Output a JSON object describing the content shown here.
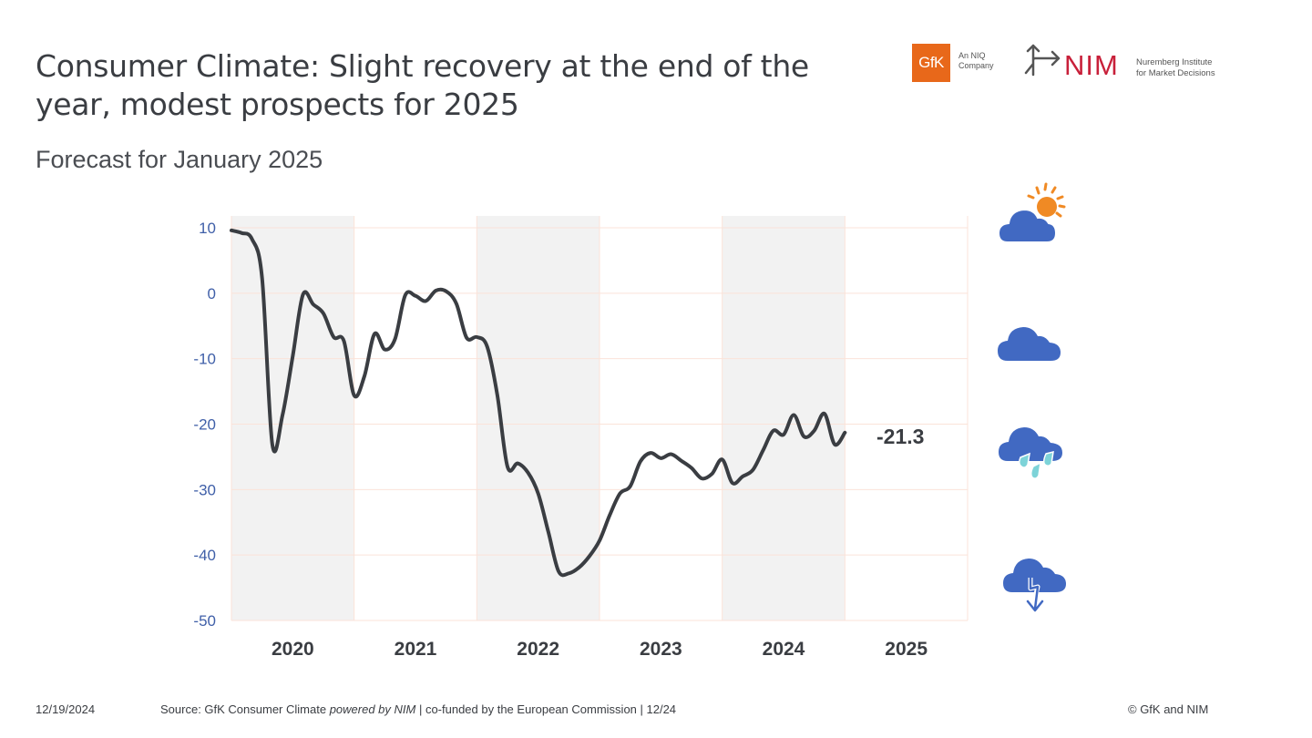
{
  "header": {
    "title": "Consumer Climate: Slight recovery at the end of the year, modest prospects for 2025",
    "subtitle": "Forecast for January 2025"
  },
  "logos": {
    "gfk": {
      "mark": "GfK",
      "tagline_line1": "An NIQ",
      "tagline_line2": "Company",
      "color": "#e8681a"
    },
    "nim": {
      "mark": "NIM",
      "tagline_line1": "Nuremberg Institute",
      "tagline_line2": "for Market Decisions",
      "color": "#c8203a"
    }
  },
  "weather_icons": [
    {
      "name": "sun-behind-cloud-icon",
      "meaning": "good"
    },
    {
      "name": "cloud-icon",
      "meaning": "neutral"
    },
    {
      "name": "rain-cloud-icon",
      "meaning": "poor"
    },
    {
      "name": "storm-cloud-icon",
      "meaning": "bad"
    }
  ],
  "colors": {
    "line": "#3a3d42",
    "axis_labels": "#3f5fa8",
    "band_shading": "#f2f2f2",
    "gridlines": "#fbe3d9",
    "cloud": "#4169c2",
    "sun": "#f08a24",
    "rain": "#7dd3d8"
  },
  "chart_data": {
    "type": "line",
    "title": "",
    "xlabel": "",
    "ylabel": "",
    "ylim": [
      -50,
      10
    ],
    "yticks": [
      10,
      0,
      -10,
      -20,
      -30,
      -40,
      -50
    ],
    "ytick_labels": [
      "10",
      "0",
      "-10",
      "-20",
      "-30",
      "-40",
      "-50"
    ],
    "categories": [
      "2020",
      "2021",
      "2022",
      "2023",
      "2024",
      "2025"
    ],
    "shaded_years": [
      "2020",
      "2022",
      "2024"
    ],
    "grid": true,
    "end_label": "-21.3",
    "series": [
      {
        "name": "GfK Consumer Climate",
        "frequency": "monthly",
        "start": "2020-01",
        "end": "2025-01",
        "values": [
          9.6,
          9.2,
          8.3,
          2.3,
          -23.1,
          -18.6,
          -9.6,
          -0.2,
          -1.7,
          -3.1,
          -6.7,
          -7.3,
          -15.6,
          -12.7,
          -6.2,
          -8.6,
          -7.0,
          -0.3,
          -0.4,
          -1.2,
          0.4,
          0.3,
          -1.6,
          -6.8,
          -6.7,
          -8.1,
          -15.5,
          -26.5,
          -26.0,
          -27.4,
          -30.6,
          -36.5,
          -42.5,
          -42.8,
          -41.9,
          -40.2,
          -37.8,
          -33.9,
          -30.6,
          -29.5,
          -25.7,
          -24.4,
          -25.2,
          -24.6,
          -25.6,
          -26.7,
          -28.3,
          -27.6,
          -25.4,
          -29.0,
          -28.0,
          -27.0,
          -24.0,
          -21.0,
          -21.6,
          -18.6,
          -21.9,
          -21.0,
          -18.4,
          -23.1,
          -21.3
        ]
      }
    ]
  },
  "footer": {
    "date": "12/19/2024",
    "source_prefix": "Source: GfK Consumer Climate ",
    "source_italic": "powered by NIM",
    "source_suffix": " | co-funded by the European Commission | 12/24",
    "copyright": "© GfK and NIM"
  }
}
